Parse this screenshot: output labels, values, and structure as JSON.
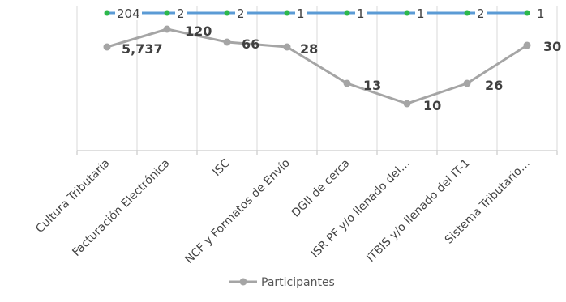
{
  "chart_data": {
    "type": "line",
    "categories": [
      "Cultura Tributaria",
      "Facturación Electrónica",
      "ISC",
      "NCF y Formatos de Envío",
      "DGII de cerca",
      "ISR PF y/o llenado del…",
      "ITBIS y/o llenado del IT-1",
      "Sistema Tributario…"
    ],
    "series": [
      {
        "name": "",
        "color": "#5B9BD5",
        "marker_color": "#2DB84B",
        "values": [
          204,
          2,
          2,
          1,
          1,
          1,
          2,
          1
        ],
        "labels": [
          "204",
          "2",
          "2",
          "1",
          "1",
          "1",
          "2",
          "1"
        ]
      },
      {
        "name": "Participantes",
        "color": "#A5A5A5",
        "labels": [
          "5,737",
          "120",
          "66",
          "28",
          "13",
          "10",
          "26",
          "30"
        ]
      }
    ],
    "legend": {
      "position": "bottom",
      "entries": [
        "Participantes"
      ]
    },
    "grid": true
  }
}
